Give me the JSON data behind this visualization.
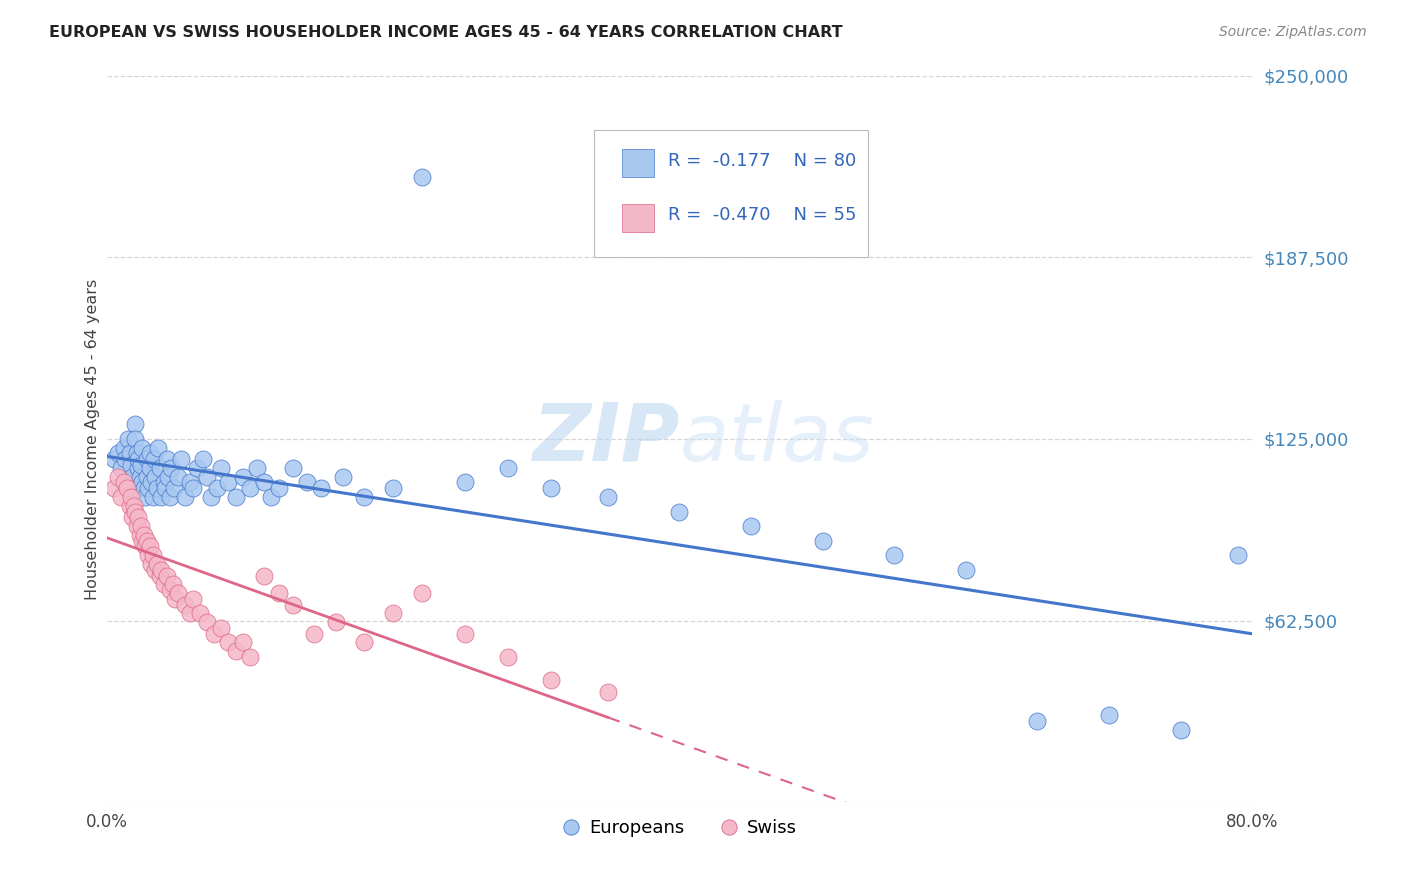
{
  "title": "EUROPEAN VS SWISS HOUSEHOLDER INCOME AGES 45 - 64 YEARS CORRELATION CHART",
  "source": "Source: ZipAtlas.com",
  "ylabel": "Householder Income Ages 45 - 64 years",
  "xlim": [
    0.0,
    0.8
  ],
  "ylim": [
    0,
    250000
  ],
  "yticks": [
    0,
    62500,
    125000,
    187500,
    250000
  ],
  "ytick_labels": [
    "",
    "$62,500",
    "$125,000",
    "$187,500",
    "$250,000"
  ],
  "xticks": [
    0.0,
    0.2,
    0.4,
    0.6,
    0.8
  ],
  "xtick_labels": [
    "0.0%",
    "",
    "",
    "",
    "80.0%"
  ],
  "europeans_R": -0.177,
  "europeans_N": 80,
  "swiss_R": -0.47,
  "swiss_N": 55,
  "blue_color": "#a8c8f0",
  "pink_color": "#f5b8c8",
  "blue_line_color": "#4477cc",
  "pink_line_color": "#dd6688",
  "legend_R_color": "#3366bb",
  "watermark": "ZIPAtlas",
  "background_color": "#ffffff",
  "grid_color": "#cccccc",
  "title_color": "#222222",
  "ylabel_color": "#444444",
  "ytick_color": "#4488bb",
  "xtick_color": "#444444",
  "europeans_x": [
    0.005,
    0.008,
    0.01,
    0.012,
    0.013,
    0.015,
    0.016,
    0.017,
    0.018,
    0.019,
    0.02,
    0.02,
    0.021,
    0.022,
    0.022,
    0.023,
    0.024,
    0.025,
    0.025,
    0.026,
    0.027,
    0.028,
    0.028,
    0.029,
    0.03,
    0.03,
    0.031,
    0.032,
    0.033,
    0.034,
    0.035,
    0.036,
    0.037,
    0.038,
    0.04,
    0.041,
    0.042,
    0.043,
    0.044,
    0.045,
    0.047,
    0.05,
    0.052,
    0.055,
    0.058,
    0.06,
    0.063,
    0.067,
    0.07,
    0.073,
    0.077,
    0.08,
    0.085,
    0.09,
    0.095,
    0.1,
    0.105,
    0.11,
    0.115,
    0.12,
    0.13,
    0.14,
    0.15,
    0.165,
    0.18,
    0.2,
    0.22,
    0.25,
    0.28,
    0.31,
    0.35,
    0.4,
    0.45,
    0.5,
    0.55,
    0.6,
    0.65,
    0.7,
    0.75,
    0.79
  ],
  "europeans_y": [
    118000,
    120000,
    115000,
    122000,
    118000,
    125000,
    120000,
    116000,
    112000,
    108000,
    130000,
    125000,
    120000,
    115000,
    118000,
    112000,
    116000,
    110000,
    122000,
    108000,
    105000,
    118000,
    112000,
    108000,
    120000,
    115000,
    110000,
    105000,
    118000,
    112000,
    108000,
    122000,
    115000,
    105000,
    110000,
    108000,
    118000,
    112000,
    105000,
    115000,
    108000,
    112000,
    118000,
    105000,
    110000,
    108000,
    115000,
    118000,
    112000,
    105000,
    108000,
    115000,
    110000,
    105000,
    112000,
    108000,
    115000,
    110000,
    105000,
    108000,
    115000,
    110000,
    108000,
    112000,
    105000,
    108000,
    215000,
    110000,
    115000,
    108000,
    105000,
    100000,
    95000,
    90000,
    85000,
    80000,
    28000,
    30000,
    25000,
    85000
  ],
  "swiss_x": [
    0.005,
    0.008,
    0.01,
    0.012,
    0.014,
    0.016,
    0.017,
    0.018,
    0.019,
    0.02,
    0.021,
    0.022,
    0.023,
    0.024,
    0.025,
    0.026,
    0.027,
    0.028,
    0.029,
    0.03,
    0.031,
    0.032,
    0.034,
    0.035,
    0.037,
    0.038,
    0.04,
    0.042,
    0.044,
    0.046,
    0.048,
    0.05,
    0.055,
    0.058,
    0.06,
    0.065,
    0.07,
    0.075,
    0.08,
    0.085,
    0.09,
    0.095,
    0.1,
    0.11,
    0.12,
    0.13,
    0.145,
    0.16,
    0.18,
    0.2,
    0.22,
    0.25,
    0.28,
    0.31,
    0.35
  ],
  "swiss_y": [
    108000,
    112000,
    105000,
    110000,
    108000,
    102000,
    105000,
    98000,
    102000,
    100000,
    95000,
    98000,
    92000,
    95000,
    90000,
    92000,
    88000,
    90000,
    85000,
    88000,
    82000,
    85000,
    80000,
    82000,
    78000,
    80000,
    75000,
    78000,
    73000,
    75000,
    70000,
    72000,
    68000,
    65000,
    70000,
    65000,
    62000,
    58000,
    60000,
    55000,
    52000,
    55000,
    50000,
    78000,
    72000,
    68000,
    58000,
    62000,
    55000,
    65000,
    72000,
    58000,
    50000,
    42000,
    38000
  ]
}
